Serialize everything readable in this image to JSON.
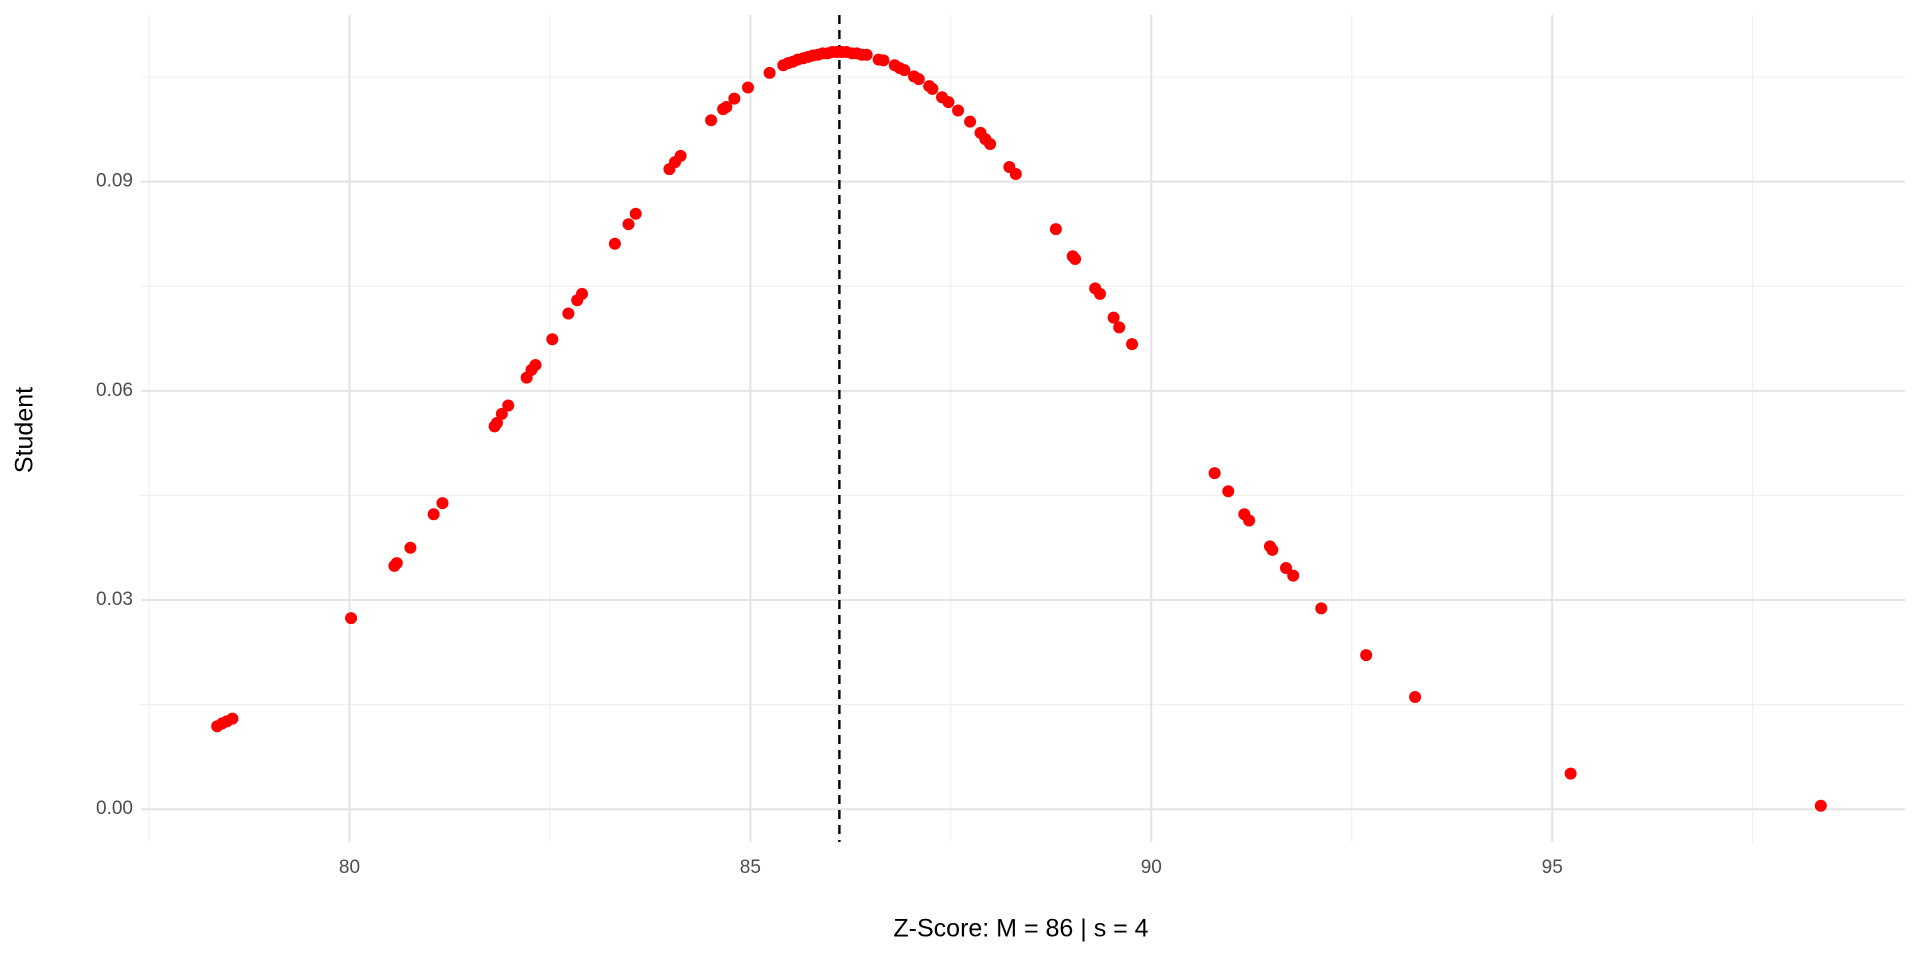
{
  "chart_data": {
    "type": "scatter",
    "x_label": "Z-Score: M = 86 | s = 4",
    "y_label": "Student",
    "color": "#ff0000",
    "grid": true,
    "minor_grid": true,
    "xlim": [
      77.4,
      99.4
    ],
    "ylim": [
      -0.0047,
      0.1139
    ],
    "xticks": [
      80,
      85,
      90,
      95
    ],
    "yticks": [
      {
        "value": 0,
        "label": "0.00"
      },
      0.03,
      0.06,
      0.09
    ],
    "reference_line": {
      "x": 86.11,
      "style": "dashed",
      "color": "#000000"
    },
    "x": [
      78.35,
      78.41,
      78.47,
      78.54,
      80.02,
      80.56,
      80.59,
      80.76,
      81.05,
      81.16,
      81.81,
      81.84,
      81.9,
      81.98,
      82.21,
      82.27,
      82.32,
      82.53,
      82.73,
      82.84,
      82.9,
      83.31,
      83.48,
      83.57,
      83.99,
      84.06,
      84.13,
      84.51,
      84.66,
      84.7,
      84.8,
      84.97,
      85.24,
      85.41,
      85.47,
      85.53,
      85.59,
      85.66,
      85.72,
      85.78,
      85.84,
      85.9,
      85.96,
      86.02,
      86.08,
      86.14,
      86.2,
      86.27,
      86.33,
      86.39,
      86.45,
      86.6,
      86.66,
      86.8,
      86.86,
      86.92,
      87.04,
      87.1,
      87.23,
      87.27,
      87.39,
      87.47,
      87.59,
      87.74,
      87.87,
      87.93,
      87.99,
      88.23,
      88.31,
      88.81,
      89.02,
      89.05,
      89.3,
      89.36,
      89.53,
      89.6,
      89.76,
      90.79,
      90.96,
      91.16,
      91.22,
      91.48,
      91.51,
      91.68,
      91.77,
      92.12,
      92.68,
      93.29,
      95.23,
      98.35
    ],
    "values": [
      0.0119,
      0.0123,
      0.0126,
      0.013,
      0.0274,
      0.0349,
      0.0353,
      0.0375,
      0.0423,
      0.0439,
      0.0549,
      0.0554,
      0.0567,
      0.0579,
      0.0619,
      0.063,
      0.0637,
      0.0674,
      0.0711,
      0.073,
      0.0739,
      0.0811,
      0.0839,
      0.0854,
      0.0918,
      0.0928,
      0.0937,
      0.0988,
      0.1004,
      0.1007,
      0.1019,
      0.1035,
      0.1056,
      0.1067,
      0.107,
      0.1072,
      0.1075,
      0.1077,
      0.1079,
      0.1081,
      0.1082,
      0.1084,
      0.1084,
      0.1086,
      0.1086,
      0.1086,
      0.1086,
      0.1084,
      0.1084,
      0.1082,
      0.1082,
      0.1075,
      0.1074,
      0.1067,
      0.1063,
      0.106,
      0.1051,
      0.1047,
      0.1037,
      0.1033,
      0.1021,
      0.1014,
      0.1002,
      0.0986,
      0.097,
      0.0961,
      0.0954,
      0.0921,
      0.0911,
      0.0832,
      0.0793,
      0.0789,
      0.0747,
      0.0739,
      0.0705,
      0.0691,
      0.0667,
      0.0482,
      0.0456,
      0.0423,
      0.0414,
      0.0377,
      0.0372,
      0.0346,
      0.0335,
      0.0288,
      0.0221,
      0.0161,
      0.0051,
      0.0005
    ]
  }
}
